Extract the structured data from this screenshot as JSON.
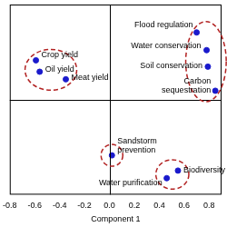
{
  "chart_data": {
    "type": "scatter",
    "x_label": "Component 1",
    "labels": [
      "Crop yield",
      "Oil yield",
      "Meat yield",
      "Flood regulation",
      "Water conservation",
      "Soil conservation",
      "Carbon sequestration",
      "Sandstorm prevention",
      "Water purification",
      "Biodiversity"
    ],
    "x": [
      -0.59,
      -0.56,
      -0.35,
      0.7,
      0.78,
      0.79,
      0.85,
      0.02,
      0.46,
      0.55
    ],
    "values": [
      0.31,
      0.22,
      0.16,
      0.53,
      0.39,
      0.26,
      0.07,
      -0.44,
      -0.62,
      -0.56
    ],
    "color": "#1a1acc",
    "marker": "circle",
    "xlim": [
      -0.8,
      0.9
    ],
    "xticks": [
      -0.8,
      -0.6,
      -0.4,
      -0.2,
      {
        "value": 0,
        "label": "0.0"
      },
      0.2,
      0.4,
      0.6,
      0.8
    ],
    "ylim": [
      -0.75,
      0.75
    ],
    "tick_labels": "x",
    "grid": false
  }
}
